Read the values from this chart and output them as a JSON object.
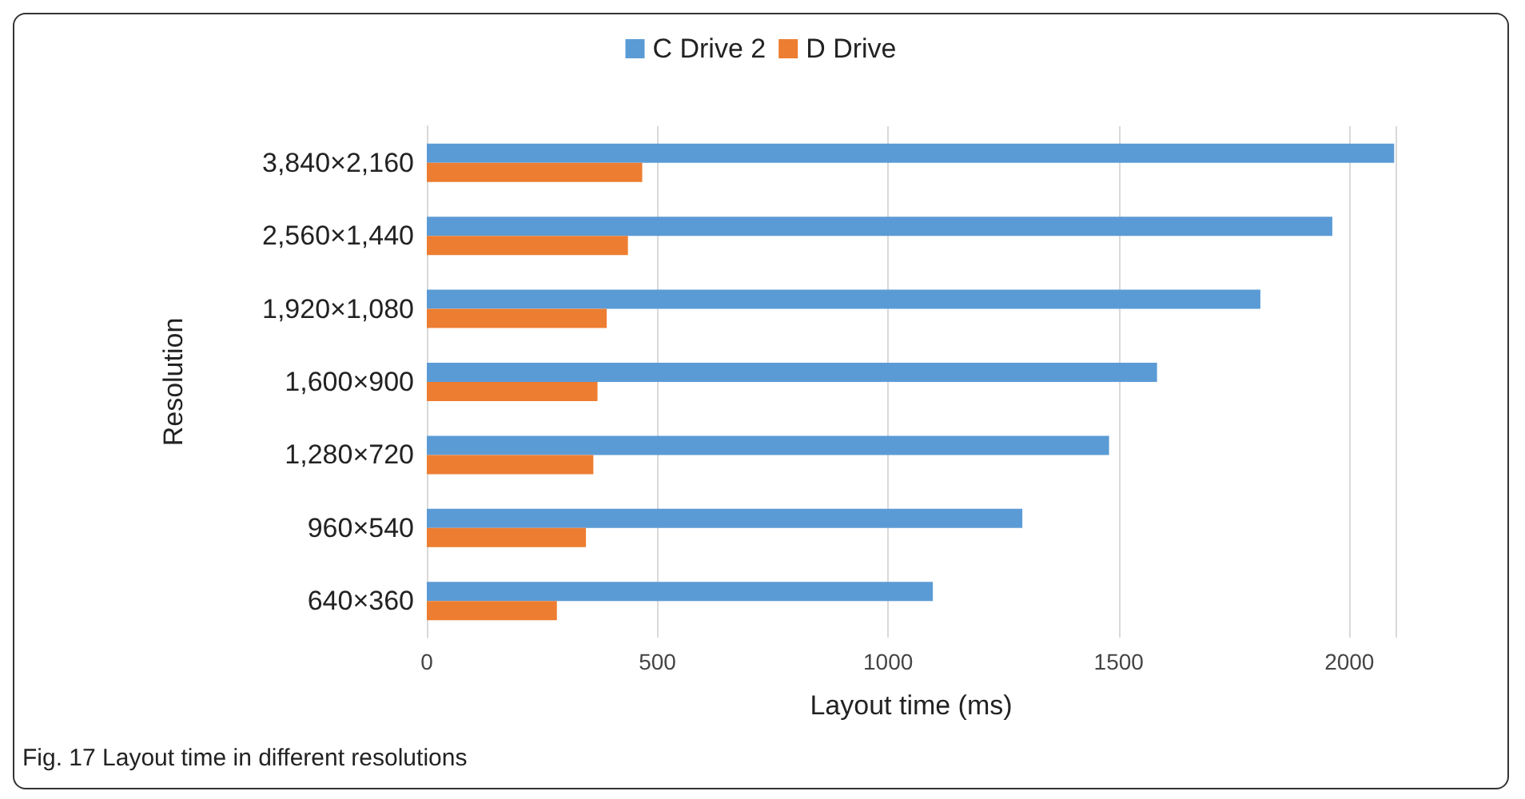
{
  "chart_data": {
    "type": "bar",
    "orientation": "horizontal",
    "xlabel": "Layout time (ms)",
    "ylabel": "Resolution",
    "categories": [
      "3,840×2,160",
      "2,560×1,440",
      "1,920×1,080",
      "1,600×900",
      "1,280×720",
      "960×540",
      "640×360"
    ],
    "series": [
      {
        "name": "C Drive 2",
        "color": "#5b9bd5",
        "values": [
          2097,
          1963,
          1807,
          1583,
          1479,
          1291,
          1097
        ]
      },
      {
        "name": "D Drive",
        "color": "#ed7d31",
        "values": [
          467,
          436,
          390,
          370,
          361,
          345,
          282
        ]
      }
    ],
    "xlim": [
      0,
      2100
    ],
    "xticks": [
      0,
      500,
      1000,
      1500,
      2000
    ],
    "grid": "x",
    "legend": "top",
    "annotations": [
      "Fig. 17 Layout time in different resolutions"
    ]
  }
}
